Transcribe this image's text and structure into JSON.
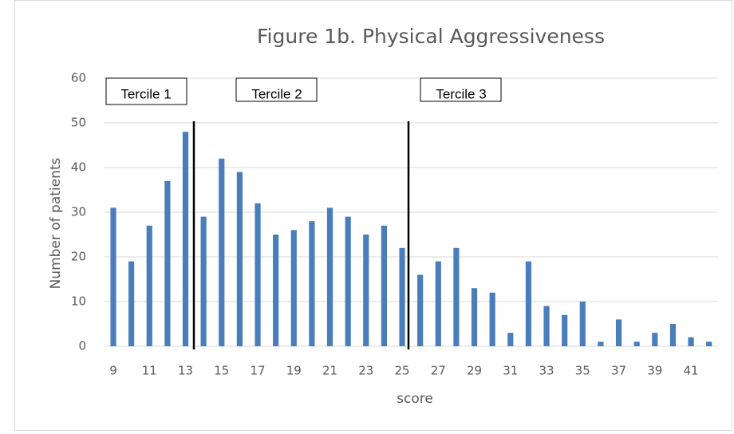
{
  "chart_data": {
    "type": "bar",
    "title": "Figure 1b. Physical Aggressiveness",
    "x_label": "score",
    "y_label": "Number of patients",
    "categories": [
      9,
      null,
      11,
      null,
      13,
      null,
      15,
      null,
      17,
      null,
      19,
      null,
      21,
      null,
      23,
      null,
      25,
      null,
      27,
      null,
      29,
      null,
      31,
      null,
      33,
      null,
      35,
      null,
      37,
      null,
      39,
      null,
      41,
      null
    ],
    "values": [
      31,
      19,
      27,
      37,
      48,
      29,
      42,
      39,
      32,
      25,
      26,
      28,
      31,
      29,
      25,
      27,
      22,
      16,
      19,
      22,
      13,
      12,
      3,
      19,
      9,
      7,
      10,
      1,
      6,
      1,
      3,
      5,
      2,
      1
    ],
    "color": "#4a7ebb",
    "ylim": [
      0,
      60
    ],
    "yticks": [
      0,
      10,
      20,
      30,
      40,
      50,
      60
    ],
    "grid": true,
    "annotations": [
      "Tercile 1",
      "Tercile 2",
      "Tercile 3"
    ]
  }
}
